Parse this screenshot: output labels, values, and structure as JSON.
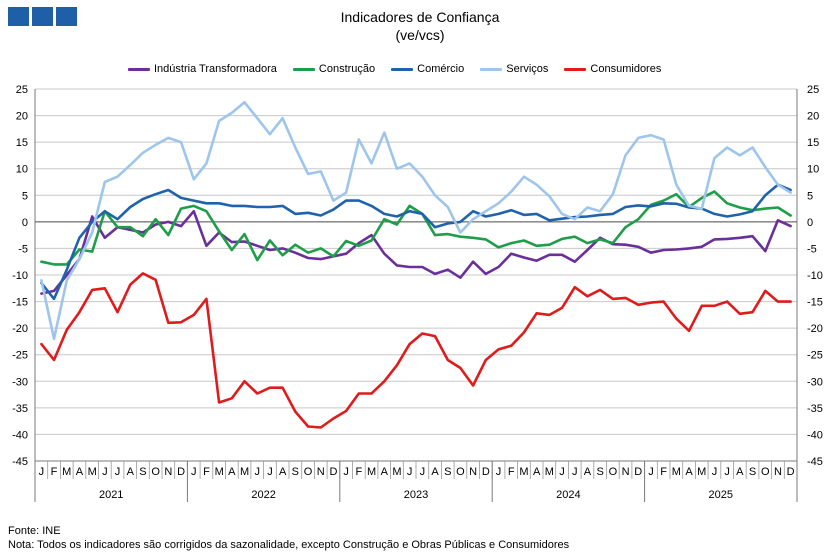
{
  "header": {
    "title": "Indicadores de Confiança",
    "subtitle": "(ve/vcs)"
  },
  "footer": {
    "source": "Fonte: INE",
    "note": "Nota: Todos os indicadores são corrigidos da sazonalidade, excepto Construção e Obras Públicas e Consumidores"
  },
  "colors": {
    "industria": "#6a2f9a",
    "construcao": "#1e9e48",
    "comercio": "#1f63ac",
    "servicos": "#9ec5ec",
    "consumidores": "#e01b1b",
    "grid": "#c8c8c8",
    "logo": "#1f5fa8"
  },
  "chart_data": {
    "type": "line",
    "ylim": [
      -45,
      25
    ],
    "yticks": [
      -45,
      -40,
      -35,
      -30,
      -25,
      -20,
      -15,
      -10,
      -5,
      0,
      5,
      10,
      15,
      20,
      25
    ],
    "grid": "horizontal",
    "legend_position": "top",
    "month_labels": [
      "J",
      "F",
      "M",
      "A",
      "M",
      "J",
      "J",
      "A",
      "S",
      "O",
      "N",
      "D"
    ],
    "years": [
      "2021",
      "2022",
      "2023",
      "2024",
      "2025"
    ],
    "series": [
      {
        "name": "Indústria Transformadora",
        "key": "industria",
        "values": [
          -13.5,
          -13,
          -10,
          -7,
          1,
          -3,
          -1,
          -1.5,
          -2,
          -0.5,
          0,
          -0.8,
          2,
          -4.5,
          -2,
          -3.8,
          -3.7,
          -4.5,
          -5.3,
          -5,
          -5.8,
          -6.8,
          -7,
          -6.5,
          -6,
          -4,
          -2.5,
          -6,
          -8.2,
          -8.5,
          -8.5,
          -9.8,
          -9,
          -10.5,
          -7.5,
          -9.8,
          -8.5,
          -6,
          -6.7,
          -7.3,
          -6.2,
          -6.2,
          -7.5,
          -5.3,
          -3,
          -4.2,
          -4.3,
          -4.7,
          -5.8,
          -5.3,
          -5.2,
          -5,
          -4.7,
          -3.3,
          -3.2,
          -3,
          -2.7,
          -5.5,
          0.3,
          -0.8
        ]
      },
      {
        "name": "Construção",
        "key": "construcao",
        "values": [
          -7.5,
          -8,
          -8,
          -5.2,
          -5.6,
          2,
          -1,
          -1,
          -2.7,
          0.5,
          -2.5,
          2.5,
          3,
          2,
          -1.8,
          -5.3,
          -2.3,
          -7.2,
          -3.5,
          -6.3,
          -4.3,
          -5.8,
          -5,
          -6.5,
          -3.6,
          -4.5,
          -3.5,
          0.5,
          -0.5,
          3,
          1.5,
          -2.5,
          -2.3,
          -2.8,
          -3,
          -3.3,
          -4.8,
          -4,
          -3.5,
          -4.5,
          -4.3,
          -3.2,
          -2.8,
          -4,
          -3.3,
          -4,
          -1,
          0.5,
          3.2,
          4,
          5.2,
          2.8,
          4.5,
          5.7,
          3.5,
          2.7,
          2.2,
          2.5,
          2.7,
          1.2
        ]
      },
      {
        "name": "Comércio",
        "key": "comercio",
        "values": [
          -11.5,
          -14.5,
          -9,
          -3,
          0,
          2,
          0.5,
          2.8,
          4.3,
          5.2,
          6,
          4.5,
          4,
          3.5,
          3.5,
          3,
          3,
          2.8,
          2.8,
          3,
          1.5,
          1.7,
          1.2,
          2.3,
          4,
          4,
          3,
          1.5,
          1,
          2,
          1.5,
          -1,
          -0.3,
          0,
          2,
          1,
          1.5,
          2.2,
          1.3,
          1.5,
          0.3,
          0.6,
          0.9,
          1,
          1.3,
          1.5,
          2.8,
          3.1,
          2.9,
          3.5,
          3.4,
          2.7,
          2.5,
          1.5,
          1,
          1.4,
          2,
          5,
          7,
          6
        ]
      },
      {
        "name": "Serviços",
        "key": "servicos",
        "values": [
          -11,
          -22,
          -11,
          -7,
          -2,
          7.5,
          8.5,
          10.7,
          13,
          14.5,
          15.8,
          15,
          8,
          11,
          19,
          20.5,
          22.5,
          19.5,
          16.5,
          19.5,
          14,
          9,
          9.5,
          4,
          5.5,
          15.5,
          11,
          16.8,
          10,
          11,
          8.5,
          5,
          2.8,
          -2,
          0.5,
          2,
          3.5,
          5.7,
          8.5,
          7,
          4.8,
          1.5,
          0.5,
          2.7,
          2,
          5.2,
          12.5,
          15.8,
          16.3,
          15.5,
          7,
          3,
          2.5,
          12,
          14,
          12.5,
          14,
          10.3,
          7,
          5.5
        ]
      },
      {
        "name": "Consumidores",
        "key": "consumidores",
        "values": [
          -23,
          -26,
          -20.3,
          -17,
          -12.8,
          -12.5,
          -17,
          -11.8,
          -9.7,
          -10.9,
          -19,
          -18.9,
          -17.5,
          -14.5,
          -34,
          -33.2,
          -30,
          -32.3,
          -31.2,
          -31.2,
          -35.7,
          -38.5,
          -38.7,
          -37,
          -35.6,
          -32.3,
          -32.3,
          -30,
          -27,
          -23,
          -21,
          -21.5,
          -26,
          -27.5,
          -30.8,
          -26,
          -24,
          -23.3,
          -20.8,
          -17.2,
          -17.5,
          -16.2,
          -12.3,
          -14,
          -12.8,
          -14.5,
          -14.3,
          -15.6,
          -15.2,
          -15,
          -18.2,
          -20.5,
          -15.8,
          -15.8,
          -15,
          -17.3,
          -17,
          -13,
          -15,
          -15
        ]
      }
    ]
  }
}
